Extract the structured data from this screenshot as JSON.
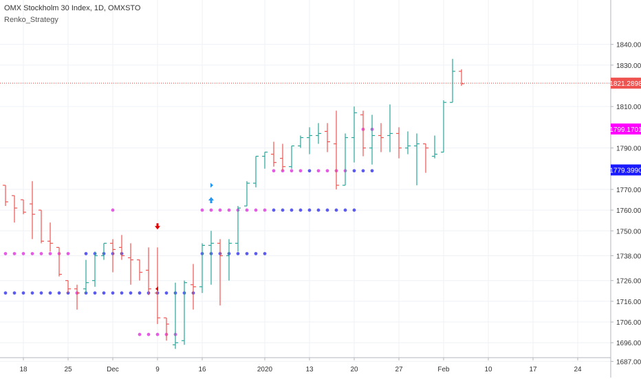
{
  "header": {
    "symbol_title": "OMX Stockholm 30 Index, 1D, OMXSTO",
    "study_name": "Renko_Strategy"
  },
  "colors": {
    "background": "#ffffff",
    "grid": "#eef1f6",
    "axis_text": "#333333",
    "up": "#26a69a",
    "down": "#ef5350",
    "last_price_line": "#e53935",
    "dot_blue": "#5b5bf0",
    "dot_pink": "#e35ce3",
    "label_blue_bg": "#1a1aff",
    "label_pink_bg": "#ff00ff",
    "arrow_up": "#2196f3",
    "arrow_down": "#e00000"
  },
  "chart_data": {
    "type": "ohlc",
    "title": "OMX Stockholm 30 Index, 1D, OMXSTO",
    "ylim": [
      1680,
      1848
    ],
    "y_ticks": [
      1840,
      1830,
      1810,
      1790,
      1770,
      1760,
      1750,
      1738,
      1726,
      1716,
      1706,
      1696,
      1687
    ],
    "y_tick_labels": [
      "1840.0000",
      "1830.0000",
      "1810.0000",
      "1790.0000",
      "1770.0000",
      "1760.0000",
      "1750.0000",
      "1738.0000",
      "1726.0000",
      "1716.0000",
      "1706.0000",
      "1696.0000",
      "1687.0000"
    ],
    "x_ticks": [
      {
        "label": "18",
        "index": 2
      },
      {
        "label": "25",
        "index": 7
      },
      {
        "label": "Dec",
        "index": 12
      },
      {
        "label": "9",
        "index": 17
      },
      {
        "label": "16",
        "index": 22
      },
      {
        "label": "2020",
        "index": 29
      },
      {
        "label": "13",
        "index": 34
      },
      {
        "label": "20",
        "index": 39
      },
      {
        "label": "27",
        "index": 44
      },
      {
        "label": "Feb",
        "index": 49
      },
      {
        "label": "10",
        "index": 54
      },
      {
        "label": "17",
        "index": 59
      },
      {
        "label": "24",
        "index": 64
      }
    ],
    "bars": [
      {
        "o": 1772,
        "h": 1772,
        "l": 1762,
        "c": 1764
      },
      {
        "o": 1767,
        "h": 1767,
        "l": 1754,
        "c": 1761
      },
      {
        "o": 1765,
        "h": 1765,
        "l": 1758,
        "c": 1759
      },
      {
        "o": 1763,
        "h": 1774,
        "l": 1746,
        "c": 1758
      },
      {
        "o": 1760,
        "h": 1760,
        "l": 1744,
        "c": 1745
      },
      {
        "o": 1745,
        "h": 1754,
        "l": 1740,
        "c": 1744
      },
      {
        "o": 1742,
        "h": 1742,
        "l": 1728,
        "c": 1729
      },
      {
        "o": 1726,
        "h": 1726,
        "l": 1720,
        "c": 1722
      },
      {
        "o": 1722,
        "h": 1724,
        "l": 1712,
        "c": 1720
      },
      {
        "o": 1722,
        "h": 1736,
        "l": 1720,
        "c": 1725
      },
      {
        "o": 1726,
        "h": 1740,
        "l": 1723,
        "c": 1738
      },
      {
        "o": 1738,
        "h": 1744,
        "l": 1736,
        "c": 1744
      },
      {
        "o": 1744,
        "h": 1746,
        "l": 1730,
        "c": 1741
      },
      {
        "o": 1742,
        "h": 1748,
        "l": 1736,
        "c": 1738
      },
      {
        "o": 1737,
        "h": 1744,
        "l": 1724,
        "c": 1736
      },
      {
        "o": 1736,
        "h": 1736,
        "l": 1726,
        "c": 1730
      },
      {
        "o": 1731,
        "h": 1742,
        "l": 1719,
        "c": 1722
      },
      {
        "o": 1720,
        "h": 1742,
        "l": 1705,
        "c": 1708
      },
      {
        "o": 1708,
        "h": 1708,
        "l": 1697,
        "c": 1705
      },
      {
        "o": 1695,
        "h": 1725,
        "l": 1693,
        "c": 1696
      },
      {
        "o": 1697,
        "h": 1726,
        "l": 1695,
        "c": 1725
      },
      {
        "o": 1724,
        "h": 1734,
        "l": 1712,
        "c": 1723
      },
      {
        "o": 1723,
        "h": 1744,
        "l": 1720,
        "c": 1743
      },
      {
        "o": 1743,
        "h": 1750,
        "l": 1724,
        "c": 1744
      },
      {
        "o": 1744,
        "h": 1746,
        "l": 1714,
        "c": 1738
      },
      {
        "o": 1738,
        "h": 1746,
        "l": 1726,
        "c": 1744
      },
      {
        "o": 1744,
        "h": 1762,
        "l": 1740,
        "c": 1761
      },
      {
        "o": 1762,
        "h": 1774,
        "l": 1762,
        "c": 1773
      },
      {
        "o": 1773,
        "h": 1786,
        "l": 1771,
        "c": 1786
      },
      {
        "o": 1786,
        "h": 1788,
        "l": 1780,
        "c": 1788
      },
      {
        "o": 1787,
        "h": 1793,
        "l": 1781,
        "c": 1783
      }
    ],
    "bars_note_segment2": [
      {
        "o": 1785,
        "h": 1792,
        "l": 1779,
        "c": 1781
      },
      {
        "o": 1781,
        "h": 1791,
        "l": 1780,
        "c": 1791
      },
      {
        "o": 1791,
        "h": 1796,
        "l": 1790,
        "c": 1795
      },
      {
        "o": 1795,
        "h": 1800,
        "l": 1787,
        "c": 1796
      },
      {
        "o": 1796,
        "h": 1802,
        "l": 1792,
        "c": 1797
      },
      {
        "o": 1798,
        "h": 1802,
        "l": 1788,
        "c": 1793
      },
      {
        "o": 1792,
        "h": 1808,
        "l": 1770,
        "c": 1772
      },
      {
        "o": 1772,
        "h": 1797,
        "l": 1772,
        "c": 1795
      },
      {
        "o": 1795,
        "h": 1810,
        "l": 1783,
        "c": 1807
      },
      {
        "o": 1806,
        "h": 1808,
        "l": 1786,
        "c": 1790
      },
      {
        "o": 1790,
        "h": 1806,
        "l": 1782,
        "c": 1796
      },
      {
        "o": 1796,
        "h": 1802,
        "l": 1788,
        "c": 1795
      },
      {
        "o": 1796,
        "h": 1811,
        "l": 1788,
        "c": 1797
      },
      {
        "o": 1797,
        "h": 1800,
        "l": 1785,
        "c": 1790
      },
      {
        "o": 1790,
        "h": 1798,
        "l": 1787,
        "c": 1791
      },
      {
        "o": 1791,
        "h": 1797,
        "l": 1772,
        "c": 1792
      },
      {
        "o": 1792,
        "h": 1792,
        "l": 1778,
        "c": 1790
      },
      {
        "o": 1786,
        "h": 1796,
        "l": 1785,
        "c": 1787
      },
      {
        "o": 1788,
        "h": 1813,
        "l": 1788,
        "c": 1812
      },
      {
        "o": 1812,
        "h": 1833,
        "l": 1812,
        "c": 1827
      },
      {
        "o": 1827,
        "h": 1828,
        "l": 1820,
        "c": 1821
      }
    ],
    "last_price": 1821.2898,
    "last_price_label": "1821.2898",
    "level_labels": [
      {
        "value": 1799.1701,
        "text": "1799.1701",
        "color": "pink"
      },
      {
        "value": 1779.399,
        "text": "1779.3990",
        "color": "blue"
      }
    ],
    "dot_series": [
      {
        "color": "pink",
        "y": 1739,
        "from": 0,
        "to": 7
      },
      {
        "color": "blue",
        "y": 1739,
        "from": 9,
        "to": 13
      },
      {
        "color": "blue",
        "y": 1720,
        "from": 0,
        "to": 21
      },
      {
        "color": "pink",
        "y": 1720,
        "from": 8,
        "to": 8
      },
      {
        "color": "pink",
        "y": 1760,
        "from": 12,
        "to": 12
      },
      {
        "color": "pink",
        "y": 1700,
        "from": 15,
        "to": 19
      },
      {
        "color": "blue",
        "y": 1739,
        "from": 22,
        "to": 29
      },
      {
        "color": "pink",
        "y": 1760,
        "from": 22,
        "to": 29
      },
      {
        "color": "blue",
        "y": 1760,
        "from": 30,
        "to": 39
      },
      {
        "color": "pink",
        "y": 1779,
        "from": 30,
        "to": 33
      },
      {
        "color": "pink",
        "y": 1779,
        "from": 35,
        "to": 38
      },
      {
        "color": "blue",
        "y": 1779,
        "from": 34,
        "to": 34
      },
      {
        "color": "blue",
        "y": 1779,
        "from": 39,
        "to": 41
      },
      {
        "color": "pink",
        "y": 1799,
        "from": 40,
        "to": 41
      }
    ],
    "signals": [
      {
        "type": "short",
        "index": 17,
        "y": 1752
      },
      {
        "type": "exit-short",
        "index": 17,
        "y": 1722
      },
      {
        "type": "long",
        "index": 23,
        "y": 1765
      },
      {
        "type": "exit-long",
        "index": 23,
        "y": 1772
      }
    ],
    "grid": true,
    "legend": "none"
  }
}
